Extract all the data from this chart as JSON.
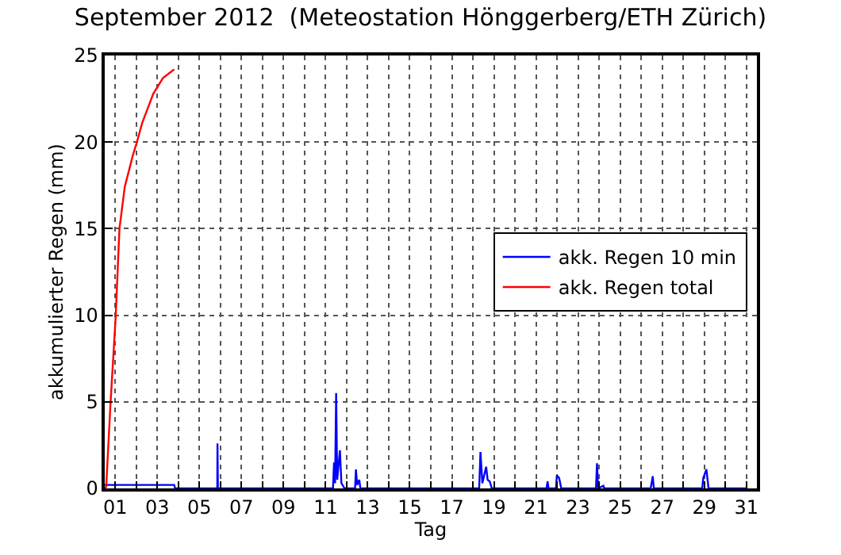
{
  "chart_data": {
    "type": "line",
    "title": "September 2012  (Meteostation Hönggerberg/ETH Zürich)",
    "xlabel": "Tag",
    "ylabel": "akkumulierter Regen (mm)",
    "xlim": [
      0.5,
      31.5
    ],
    "xticks": [
      {
        "value": 1,
        "label": "01"
      },
      {
        "value": 2,
        "label": null
      },
      {
        "value": 3,
        "label": "03"
      },
      {
        "value": 4,
        "label": null
      },
      {
        "value": 5,
        "label": "05"
      },
      {
        "value": 6,
        "label": null
      },
      {
        "value": 7,
        "label": "07"
      },
      {
        "value": 8,
        "label": null
      },
      {
        "value": 9,
        "label": "09"
      },
      {
        "value": 10,
        "label": null
      },
      {
        "value": 11,
        "label": "11"
      },
      {
        "value": 12,
        "label": null
      },
      {
        "value": 13,
        "label": "13"
      },
      {
        "value": 14,
        "label": null
      },
      {
        "value": 15,
        "label": "15"
      },
      {
        "value": 16,
        "label": null
      },
      {
        "value": 17,
        "label": "17"
      },
      {
        "value": 18,
        "label": null
      },
      {
        "value": 19,
        "label": "19"
      },
      {
        "value": 20,
        "label": null
      },
      {
        "value": 21,
        "label": "21"
      },
      {
        "value": 22,
        "label": null
      },
      {
        "value": 23,
        "label": "23"
      },
      {
        "value": 24,
        "label": null
      },
      {
        "value": 25,
        "label": "25"
      },
      {
        "value": 26,
        "label": null
      },
      {
        "value": 27,
        "label": "27"
      },
      {
        "value": 28,
        "label": null
      },
      {
        "value": 29,
        "label": "29"
      },
      {
        "value": 30,
        "label": null
      },
      {
        "value": 31,
        "label": "31"
      }
    ],
    "ylim": [
      0,
      25
    ],
    "yticks": [
      0,
      5,
      10,
      15,
      20,
      25
    ],
    "grid": true,
    "legend": "right",
    "line_style": "solid",
    "series": [
      {
        "name": "akk. Regen 10 min",
        "color": "#0000ff",
        "x": [
          0.5,
          3.8,
          3.85,
          5.85,
          5.86,
          5.88,
          11.35,
          11.4,
          11.45,
          11.5,
          11.55,
          11.68,
          11.75,
          11.9,
          12.4,
          12.44,
          12.5,
          12.6,
          12.65,
          18.3,
          18.36,
          18.45,
          18.63,
          18.7,
          18.8,
          18.9,
          21.5,
          21.55,
          21.6,
          21.95,
          21.99,
          22.1,
          22.2,
          23.85,
          23.9,
          23.95,
          24.2,
          24.25,
          26.45,
          26.55,
          26.6,
          28.9,
          28.95,
          29.1,
          29.2,
          31
        ],
        "values": [
          0.2,
          0.2,
          0,
          0,
          2.6,
          0,
          0,
          1.5,
          0.3,
          5.5,
          0.5,
          2.2,
          0.3,
          0,
          0,
          1.1,
          0.2,
          0.5,
          0,
          0,
          2.1,
          0.3,
          1.25,
          0.5,
          0.4,
          0,
          0,
          0.4,
          0,
          0,
          0.75,
          0.6,
          0,
          0,
          1.45,
          0,
          0.15,
          0,
          0,
          0.7,
          0,
          0,
          0.6,
          1.1,
          0,
          0
        ]
      },
      {
        "name": "akk. Regen total",
        "color": "#ff0000",
        "x": [
          0.5,
          0.57,
          0.77,
          1.02,
          1.2,
          1.45,
          1.83,
          2.03,
          2.28,
          2.81,
          3.27,
          3.8
        ],
        "values": [
          0,
          0.1,
          4.8,
          9.9,
          15.0,
          17.4,
          19.2,
          20.0,
          21.1,
          22.8,
          23.7,
          24.2
        ]
      }
    ]
  }
}
